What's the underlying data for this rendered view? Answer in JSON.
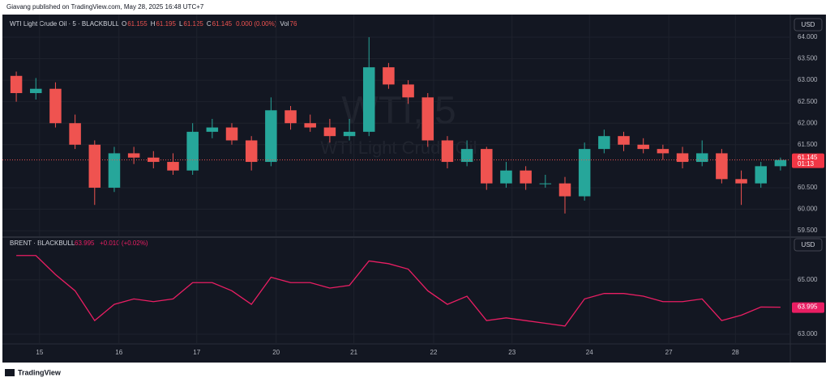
{
  "header": {
    "publisher": "Giavang published on TradingView.com, May 28, 2025 16:48 UTC+7",
    "footer": "TradingView"
  },
  "chart_data": [
    {
      "type": "candlestick",
      "title": "WTI Light Crude Oil · 5 · BLACKBULL",
      "watermark": [
        "WTI, 5",
        "WTI Light Crude Oil"
      ],
      "legend_values": [
        {
          "label": "O",
          "value": "61.155"
        },
        {
          "label": "H",
          "value": "61.195"
        },
        {
          "label": "L",
          "value": "61.125"
        },
        {
          "label": "C",
          "value": "61.145"
        },
        {
          "label": "",
          "value": "0.000 (0.00%)"
        },
        {
          "label": "Vol",
          "value": "76"
        }
      ],
      "currency": "USD",
      "countdown": "01:13",
      "up_color": "#26a69a",
      "down_color": "#ef5350",
      "open": [
        63.1,
        62.7,
        62.8,
        62.0,
        61.5,
        60.5,
        61.3,
        61.2,
        61.1,
        60.9,
        61.8,
        61.9,
        61.6,
        61.1,
        62.3,
        62.0,
        61.9,
        61.7,
        61.8,
        63.3,
        62.9,
        62.6,
        61.6,
        61.1,
        61.4,
        60.6,
        60.9,
        60.6,
        60.6,
        60.3,
        61.4,
        61.7,
        61.5,
        61.4,
        61.3,
        61.1,
        61.3,
        60.7,
        60.6,
        61.0
      ],
      "high": [
        63.2,
        63.05,
        62.95,
        62.2,
        61.6,
        61.45,
        61.45,
        61.35,
        61.3,
        62.0,
        62.1,
        62.0,
        61.7,
        62.6,
        62.4,
        62.2,
        62.1,
        62.1,
        64.0,
        63.4,
        63.0,
        62.7,
        61.7,
        61.6,
        61.45,
        61.1,
        61.0,
        60.8,
        60.75,
        61.55,
        61.85,
        61.8,
        61.65,
        61.5,
        61.45,
        61.6,
        61.4,
        60.9,
        61.1,
        61.2
      ],
      "low": [
        62.5,
        62.55,
        61.9,
        61.4,
        60.1,
        60.4,
        61.05,
        60.95,
        60.8,
        60.8,
        61.65,
        61.5,
        60.9,
        61.0,
        61.85,
        61.8,
        61.55,
        61.6,
        61.7,
        62.8,
        62.45,
        61.45,
        60.95,
        61.0,
        60.45,
        60.5,
        60.45,
        60.5,
        59.9,
        60.2,
        61.3,
        61.35,
        61.3,
        61.15,
        60.95,
        61.0,
        60.6,
        60.1,
        60.5,
        60.9
      ],
      "close": [
        62.7,
        62.8,
        62.0,
        61.5,
        60.5,
        61.3,
        61.2,
        61.1,
        60.9,
        61.8,
        61.9,
        61.6,
        61.1,
        62.3,
        62.0,
        61.9,
        61.7,
        61.8,
        63.3,
        62.9,
        62.6,
        61.6,
        61.1,
        61.4,
        60.6,
        60.9,
        60.6,
        60.6,
        60.3,
        61.4,
        61.7,
        61.5,
        61.4,
        61.3,
        61.1,
        61.3,
        60.7,
        60.6,
        61.0,
        61.145
      ],
      "xlim": [
        0,
        40
      ],
      "ylim": [
        59.37,
        64.3
      ],
      "yticks": [
        {
          "value": 59.5,
          "label": "59.500"
        },
        {
          "value": 60.0,
          "label": "60.000"
        },
        {
          "value": 60.5,
          "label": "60.500"
        },
        {
          "value": 61.5,
          "label": "61.500"
        },
        {
          "value": 62.0,
          "label": "62.000"
        },
        {
          "value": 62.5,
          "label": "62.500"
        },
        {
          "value": 63.0,
          "label": "63.000"
        },
        {
          "value": 63.5,
          "label": "63.500"
        },
        {
          "value": 64.0,
          "label": "64.000"
        }
      ]
    },
    {
      "type": "line",
      "title": "BRENT · BLACKBULL",
      "legend_change": "+0.010 (+0.02%)",
      "currency": "USD",
      "color": "#e91e63",
      "values": [
        65.9,
        65.9,
        65.2,
        64.6,
        63.5,
        64.1,
        64.3,
        64.2,
        64.3,
        64.9,
        64.9,
        64.6,
        64.1,
        65.1,
        64.9,
        64.9,
        64.7,
        64.8,
        65.7,
        65.6,
        65.4,
        64.6,
        64.1,
        64.4,
        63.5,
        63.6,
        63.5,
        63.4,
        63.3,
        64.3,
        64.5,
        64.5,
        64.4,
        64.2,
        64.2,
        64.3,
        63.5,
        63.7,
        64.0,
        63.995
      ],
      "xlim": [
        0,
        40
      ],
      "ylim": [
        62.64,
        66.52
      ],
      "yticks": [
        {
          "value": 63,
          "label": "63.000"
        },
        {
          "value": 65,
          "label": "65.000"
        }
      ],
      "xticks": [
        {
          "value": 1.69,
          "label": "15"
        },
        {
          "value": 5.74,
          "label": "16"
        },
        {
          "value": 9.71,
          "label": "17"
        },
        {
          "value": 13.76,
          "label": "20"
        },
        {
          "value": 17.73,
          "label": "21"
        },
        {
          "value": 21.8,
          "label": "22"
        },
        {
          "value": 25.8,
          "label": "23"
        },
        {
          "value": 29.75,
          "label": "24"
        },
        {
          "value": 33.8,
          "label": "27"
        },
        {
          "value": 37.2,
          "label": "28"
        }
      ]
    }
  ]
}
